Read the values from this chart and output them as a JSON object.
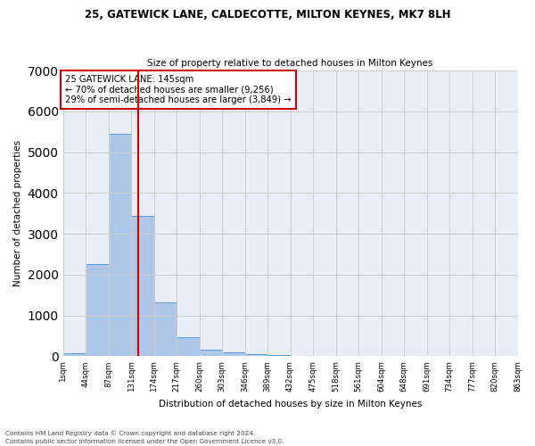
{
  "title1": "25, GATEWICK LANE, CALDECOTTE, MILTON KEYNES, MK7 8LH",
  "title2": "Size of property relative to detached houses in Milton Keynes",
  "xlabel": "Distribution of detached houses by size in Milton Keynes",
  "ylabel": "Number of detached properties",
  "bar_values": [
    75,
    2270,
    5460,
    3440,
    1310,
    470,
    160,
    90,
    60,
    30,
    10,
    5,
    3,
    2,
    1,
    1,
    0,
    0,
    0,
    0
  ],
  "tick_labels": [
    "1sqm",
    "44sqm",
    "87sqm",
    "131sqm",
    "174sqm",
    "217sqm",
    "260sqm",
    "303sqm",
    "346sqm",
    "389sqm",
    "432sqm",
    "475sqm",
    "518sqm",
    "561sqm",
    "604sqm",
    "648sqm",
    "691sqm",
    "734sqm",
    "777sqm",
    "820sqm",
    "863sqm"
  ],
  "bar_color": "#aec6e8",
  "bar_edge_color": "#5b9bd5",
  "vline_bin": 2.37,
  "vline_color": "#cc0000",
  "annotation_box_text": "25 GATEWICK LANE: 145sqm\n← 70% of detached houses are smaller (9,256)\n29% of semi-detached houses are larger (3,849) →",
  "annotation_box_color": "#cc0000",
  "ylim": [
    0,
    7000
  ],
  "yticks": [
    0,
    1000,
    2000,
    3000,
    4000,
    5000,
    6000,
    7000
  ],
  "grid_color": "#cccccc",
  "background_color": "#e8eef7",
  "footer1": "Contains HM Land Registry data © Crown copyright and database right 2024.",
  "footer2": "Contains public sector information licensed under the Open Government Licence v3.0.",
  "num_bins": 20,
  "figwidth": 6.0,
  "figheight": 5.0
}
